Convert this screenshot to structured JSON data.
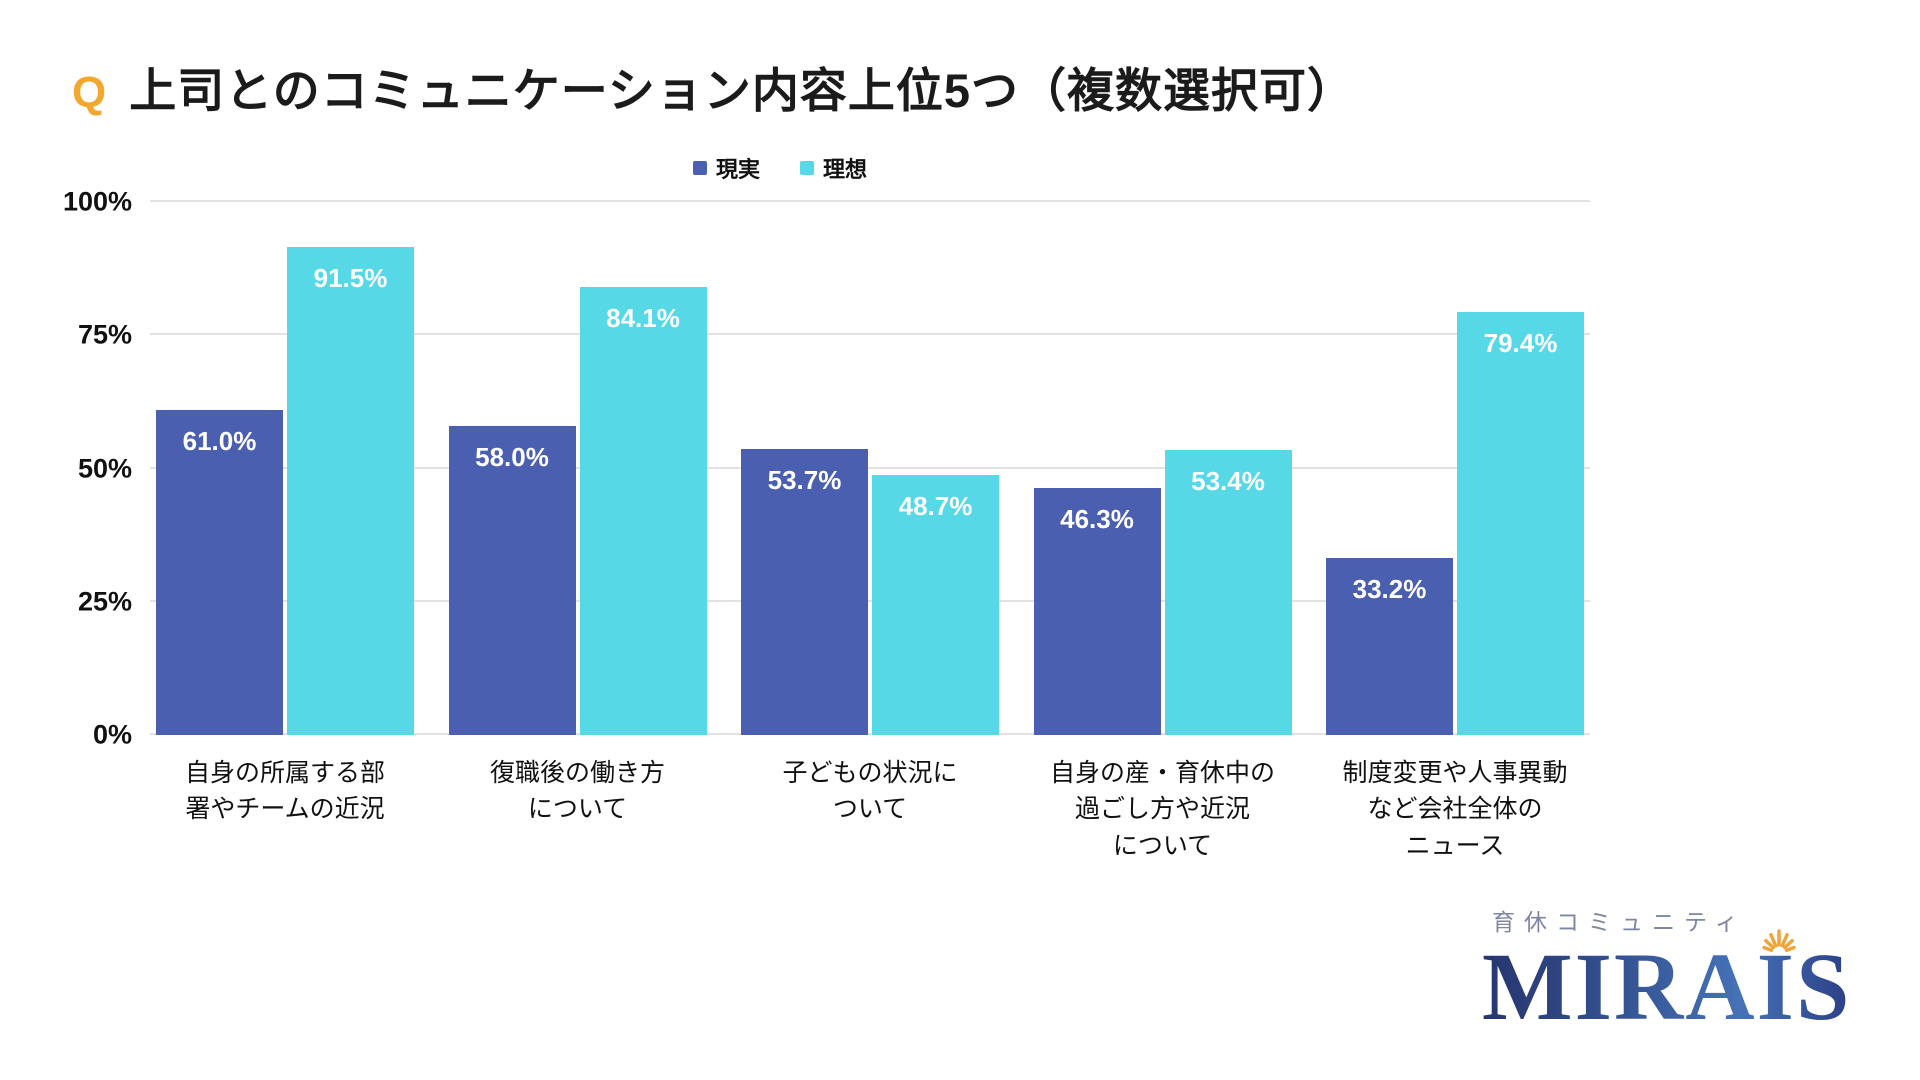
{
  "title": {
    "q": "Q",
    "text": "上司とのコミュニケーション内容上位5つ（複数選択可）"
  },
  "chart_data": {
    "type": "bar",
    "title": "上司とのコミュニケーション内容上位5つ（複数選択可）",
    "categories": [
      "自身の所属する部\n署やチームの近況",
      "復職後の働き方\nについて",
      "子どもの状況に\nついて",
      "自身の産・育休中の\n過ごし方や近況\nについて",
      "制度変更や人事異動\nなど会社全体の\nニュース"
    ],
    "series": [
      {
        "name": "現実",
        "color": "#4a5fb0",
        "values": [
          61.0,
          58.0,
          53.7,
          46.3,
          33.2
        ]
      },
      {
        "name": "理想",
        "color": "#57d8e7",
        "values": [
          91.5,
          84.1,
          48.7,
          53.4,
          79.4
        ]
      }
    ],
    "ylim": [
      0,
      100
    ],
    "yticks": [
      "0%",
      "25%",
      "50%",
      "75%",
      "100%"
    ],
    "grid": true,
    "legend_position": "top-center",
    "value_label_suffix": "%"
  },
  "logo": {
    "community": "育休コミュニティ",
    "brand": "MIRAIS",
    "accent_color": "#f0a43c",
    "brand_color": "#33508f"
  }
}
